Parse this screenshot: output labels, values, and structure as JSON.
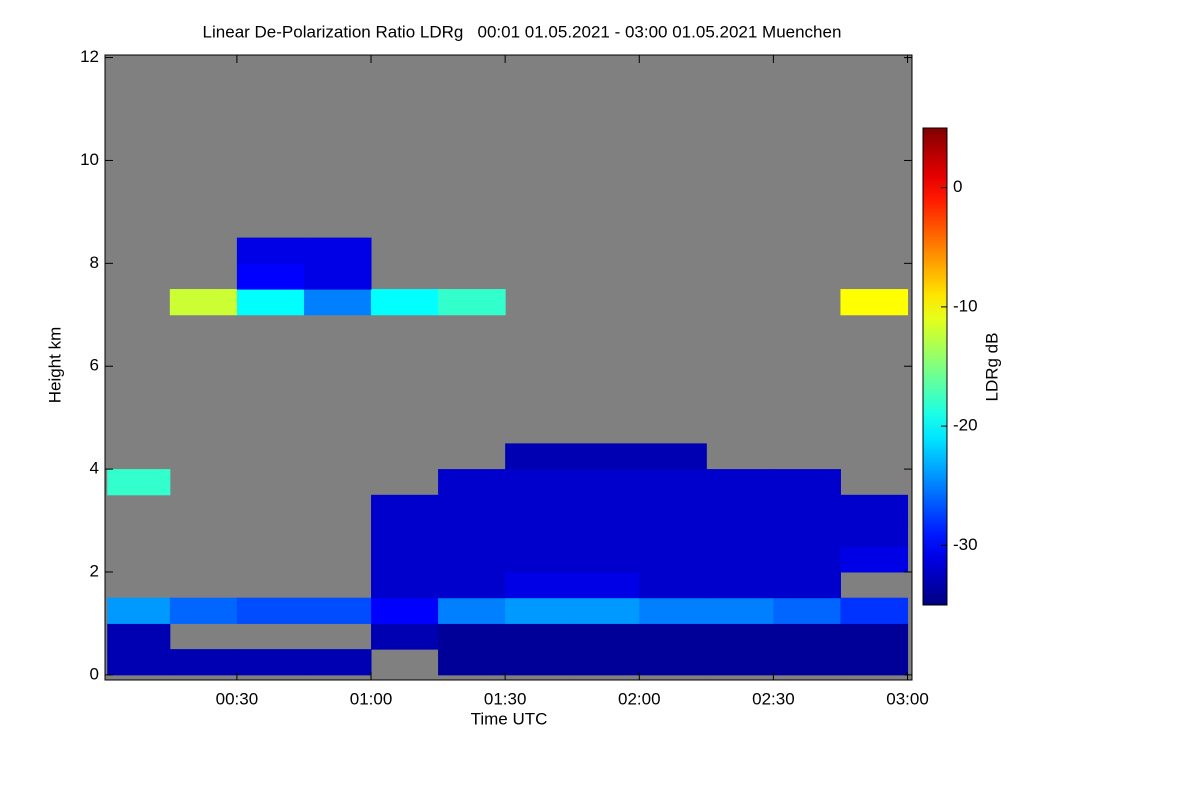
{
  "chart_data": {
    "type": "heatmap",
    "title": "Linear De-Polarization Ratio LDRg   00:01 01.05.2021 - 03:00 01.05.2021 Muenchen",
    "xlabel": "Time UTC",
    "ylabel": "Height km",
    "colorbar_label": "LDRg dB",
    "colormap": "jet",
    "missing_color": "#808080",
    "xlim": [
      0.5,
      181
    ],
    "ylim": [
      -0.1,
      12.05
    ],
    "zlim": [
      -35,
      5
    ],
    "xticks": [
      {
        "value": 30,
        "label": "00:30"
      },
      {
        "value": 60,
        "label": "01:00"
      },
      {
        "value": 90,
        "label": "01:30"
      },
      {
        "value": 120,
        "label": "02:00"
      },
      {
        "value": 150,
        "label": "02:30"
      },
      {
        "value": 180,
        "label": "03:00"
      }
    ],
    "yticks": [
      0,
      2,
      4,
      6,
      8,
      10,
      12
    ],
    "zticks": [
      0,
      -10,
      -20,
      -30
    ],
    "x_bins": [
      1,
      15,
      30,
      45,
      60,
      75,
      90,
      105,
      120,
      135,
      150,
      165,
      180
    ],
    "y_bins": [
      0,
      0.5,
      1,
      1.5,
      2,
      2.5,
      3,
      3.5,
      4,
      4.5,
      5,
      5.5,
      6,
      6.5,
      7,
      7.5,
      8,
      8.5,
      9,
      9.5,
      10,
      10.5,
      11,
      11.5,
      12
    ],
    "z": [
      [
        -33,
        -33,
        -33,
        -33,
        null,
        -34,
        -34,
        -34,
        -34,
        -34,
        -34,
        -34
      ],
      [
        -33,
        null,
        null,
        null,
        -33,
        -34,
        -34,
        -34,
        -34,
        -34,
        -34,
        -34
      ],
      [
        -24,
        -26,
        -27,
        -27,
        -30,
        -25,
        -24,
        -24,
        -25,
        -25,
        -26,
        -28
      ],
      [
        null,
        null,
        null,
        null,
        -32,
        -32,
        -31,
        -31,
        -32,
        -32,
        -32,
        null
      ],
      [
        null,
        null,
        null,
        null,
        -32,
        -32,
        -32,
        -32,
        -32,
        -32,
        -32,
        -31
      ],
      [
        null,
        null,
        null,
        null,
        -32,
        -32,
        -32,
        -32,
        -32,
        -32,
        -32,
        -32
      ],
      [
        null,
        null,
        null,
        null,
        -32,
        -32,
        -32,
        -32,
        -32,
        -32,
        -32,
        -32
      ],
      [
        -18,
        null,
        null,
        null,
        null,
        -32,
        -32,
        -32,
        -32,
        -32,
        -32,
        null
      ],
      [
        null,
        null,
        null,
        null,
        null,
        null,
        -33,
        -33,
        -33,
        null,
        null,
        null
      ],
      [
        null,
        null,
        null,
        null,
        null,
        null,
        null,
        null,
        null,
        null,
        null,
        null
      ],
      [
        null,
        null,
        null,
        null,
        null,
        null,
        null,
        null,
        null,
        null,
        null,
        null
      ],
      [
        null,
        null,
        null,
        null,
        null,
        null,
        null,
        null,
        null,
        null,
        null,
        null
      ],
      [
        null,
        null,
        null,
        null,
        null,
        null,
        null,
        null,
        null,
        null,
        null,
        null
      ],
      [
        null,
        null,
        null,
        null,
        null,
        null,
        null,
        null,
        null,
        null,
        null,
        null
      ],
      [
        null,
        -12,
        -20,
        -25,
        -20,
        -18,
        null,
        null,
        null,
        null,
        null,
        -10
      ],
      [
        null,
        null,
        -30,
        -31,
        null,
        null,
        null,
        null,
        null,
        null,
        null,
        null
      ],
      [
        null,
        null,
        -31,
        -31,
        null,
        null,
        null,
        null,
        null,
        null,
        null,
        null
      ],
      [
        null,
        null,
        null,
        null,
        null,
        null,
        null,
        null,
        null,
        null,
        null,
        null
      ],
      [
        null,
        null,
        null,
        null,
        null,
        null,
        null,
        null,
        null,
        null,
        null,
        null
      ],
      [
        null,
        null,
        null,
        null,
        null,
        null,
        null,
        null,
        null,
        null,
        null,
        null
      ],
      [
        null,
        null,
        null,
        null,
        null,
        null,
        null,
        null,
        null,
        null,
        null,
        null
      ],
      [
        null,
        null,
        null,
        null,
        null,
        null,
        null,
        null,
        null,
        null,
        null,
        null
      ],
      [
        null,
        null,
        null,
        null,
        null,
        null,
        null,
        null,
        null,
        null,
        null,
        null
      ],
      [
        null,
        null,
        null,
        null,
        null,
        null,
        null,
        null,
        null,
        null,
        null,
        null
      ]
    ]
  }
}
